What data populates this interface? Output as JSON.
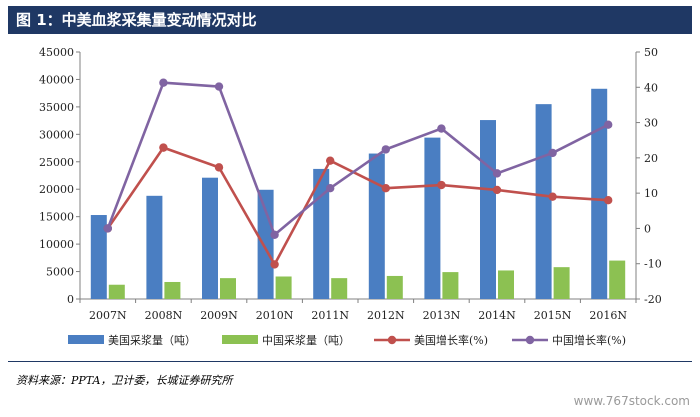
{
  "header": {
    "title": "图 1：中美血浆采集量变动情况对比"
  },
  "footer": {
    "source": "资料来源：PPTA，卫计委，长城证券研究所",
    "watermark": "www.767stock.com"
  },
  "colors": {
    "us_bar": "#4a7ec2",
    "cn_bar": "#8cc152",
    "us_line": "#c0504d",
    "cn_line": "#8064a2",
    "header": "#1f3864"
  },
  "chart_data": {
    "type": "bar",
    "categories": [
      "2007N",
      "2008N",
      "2009N",
      "2010N",
      "2011N",
      "2012N",
      "2013N",
      "2014N",
      "2015N",
      "2016N"
    ],
    "left_axis": {
      "ylim": [
        0,
        45000
      ],
      "ticks": [
        0,
        5000,
        10000,
        15000,
        20000,
        25000,
        30000,
        35000,
        40000,
        45000
      ]
    },
    "right_axis": {
      "ylim": [
        -20,
        50
      ],
      "ticks": [
        -20,
        -10,
        0,
        10,
        20,
        30,
        40,
        50
      ]
    },
    "series": [
      {
        "name": "美国采浆量（吨）",
        "type": "bar",
        "axis": "left",
        "values": [
          15300,
          18800,
          22100,
          19900,
          23700,
          26500,
          29400,
          32600,
          35500,
          38300
        ]
      },
      {
        "name": "中国采浆量（吨）",
        "type": "bar",
        "axis": "left",
        "values": [
          2600,
          3100,
          3800,
          4100,
          3800,
          4200,
          4900,
          5200,
          5800,
          7000
        ]
      },
      {
        "name": "美国增长率(%)",
        "type": "line",
        "axis": "right",
        "values": [
          0,
          22.9,
          17.3,
          -10.2,
          19.2,
          11.4,
          12.3,
          10.9,
          9.0,
          8.0
        ]
      },
      {
        "name": "中国增长率(%)",
        "type": "line",
        "axis": "right",
        "values": [
          0,
          41.3,
          40.2,
          -1.8,
          11.4,
          22.4,
          28.3,
          15.6,
          21.4,
          29.4
        ]
      }
    ],
    "legend_position": "bottom",
    "grid": false
  }
}
